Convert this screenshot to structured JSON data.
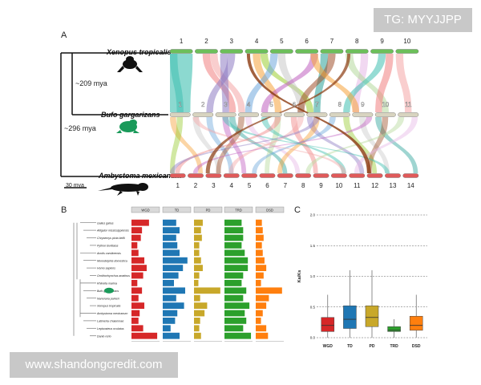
{
  "overlay": {
    "tag": "TG: MYYJJPP",
    "watermark": "www.shandongcredit.com"
  },
  "panel_a": {
    "letter": "A",
    "species": [
      {
        "name": "Xenopus tropicalis",
        "chromosomes": [
          "1",
          "2",
          "3",
          "4",
          "5",
          "6",
          "7",
          "8",
          "9",
          "10"
        ]
      },
      {
        "name": "Bufo gargarizans",
        "chromosomes": [
          "1",
          "2",
          "3",
          "4",
          "5",
          "6",
          "7",
          "8",
          "9",
          "10",
          "11"
        ]
      },
      {
        "name": "Ambystoma mexicanum",
        "chromosomes": [
          "1",
          "2",
          "3",
          "4",
          "5",
          "6",
          "7",
          "8",
          "9",
          "10",
          "11",
          "12",
          "13",
          "14"
        ]
      }
    ],
    "divergence": [
      "~209 mya",
      "~296 mya"
    ],
    "scale": "30 mya"
  },
  "panel_b": {
    "letter": "B",
    "columns": [
      "WGD",
      "TD",
      "PD",
      "TRD",
      "DSD"
    ],
    "species": [
      "Gallus gallus",
      "Alligator mississippiensis",
      "Chrysemys picta bellii",
      "Python bivittatus",
      "Anolis carolinensis",
      "Monodelphis domestica",
      "Homo sapiens",
      "Ornithorhynchus anatinus",
      "Rhinella marina",
      "Bufo gargarizans",
      "Nanorana parkeri",
      "Xenopus tropicalis",
      "Ambystoma mexicanum",
      "Latimeria chalumnae",
      "Lepisosteus oculatus",
      "Danio rerio"
    ],
    "chart_data": {
      "type": "bar",
      "categories": [
        "Gallus gallus",
        "Alligator mississippiensis",
        "Chrysemys picta bellii",
        "Python bivittatus",
        "Anolis carolinensis",
        "Monodelphis domestica",
        "Homo sapiens",
        "Ornithorhynchus anatinus",
        "Rhinella marina",
        "Bufo gargarizans",
        "Nanorana parkeri",
        "Xenopus tropicalis",
        "Ambystoma mexicanum",
        "Latimeria chalumnae",
        "Lepisosteus oculatus",
        "Danio rerio"
      ],
      "series": [
        {
          "name": "WGD",
          "values": [
            750,
            450,
            400,
            250,
            300,
            550,
            650,
            500,
            250,
            450,
            300,
            550,
            350,
            300,
            500,
            1100
          ]
        },
        {
          "name": "TD",
          "values": [
            1200,
            1500,
            1200,
            1300,
            1500,
            2200,
            1800,
            1400,
            1000,
            2000,
            1200,
            1900,
            1300,
            1100,
            700,
            1500
          ]
        },
        {
          "name": "PD",
          "values": [
            1000,
            800,
            900,
            600,
            600,
            800,
            1000,
            600,
            500,
            3000,
            700,
            1500,
            1200,
            700,
            600,
            800
          ]
        },
        {
          "name": "TRD",
          "values": [
            5500,
            6000,
            6000,
            5500,
            6500,
            7500,
            7500,
            6000,
            5500,
            7000,
            6000,
            8000,
            6500,
            7000,
            6000,
            8500
          ]
        },
        {
          "name": "DSD",
          "values": [
            7000,
            8000,
            9000,
            7000,
            8000,
            10000,
            12000,
            9000,
            6000,
            30000,
            15000,
            12000,
            8000,
            6000,
            12000,
            14000
          ]
        }
      ],
      "colors": [
        "#d62728",
        "#1f77b4",
        "#c8a82a",
        "#2ca02c",
        "#ff7f0e"
      ]
    }
  },
  "panel_c": {
    "letter": "C",
    "chart_data": {
      "type": "box",
      "categories": [
        "WGD",
        "TD",
        "PD",
        "TRD",
        "DSD"
      ],
      "ylabel": "Ka/Ks",
      "ylim": [
        0,
        2.0
      ],
      "yticks": [
        "0.0",
        "0.5",
        "1.0",
        "1.5",
        "2.0"
      ],
      "series": [
        {
          "name": "WGD",
          "q1": 0.1,
          "median": 0.2,
          "q3": 0.33,
          "whisker_low": 0.0,
          "whisker_high": 0.7
        },
        {
          "name": "TD",
          "q1": 0.15,
          "median": 0.3,
          "q3": 0.52,
          "whisker_low": 0.0,
          "whisker_high": 1.1
        },
        {
          "name": "PD",
          "q1": 0.18,
          "median": 0.33,
          "q3": 0.52,
          "whisker_low": 0.0,
          "whisker_high": 1.1
        },
        {
          "name": "TRD",
          "q1": 0.1,
          "median": 0.12,
          "q3": 0.18,
          "whisker_low": 0.0,
          "whisker_high": 0.3
        },
        {
          "name": "DSD",
          "q1": 0.12,
          "median": 0.2,
          "q3": 0.35,
          "whisker_low": 0.0,
          "whisker_high": 0.7
        }
      ],
      "colors": [
        "#d62728",
        "#1f77b4",
        "#c8a82a",
        "#2ca02c",
        "#ff7f0e"
      ]
    }
  }
}
